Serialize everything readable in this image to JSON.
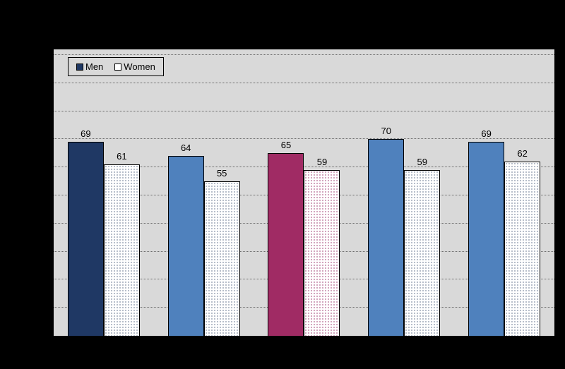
{
  "page": {
    "background_color": "#000000"
  },
  "plot": {
    "bg_color": "#D9D9D9",
    "gridline_color": "#6B6B6B"
  },
  "legend": {
    "items": [
      {
        "label": "Men",
        "swatch_color": "#1F3864",
        "swatch_border": "#000000"
      },
      {
        "label": "Women",
        "swatch_color": "#FFFFFF",
        "swatch_border": "#000000"
      }
    ]
  },
  "chart_data": {
    "type": "bar",
    "categories": [
      "",
      "",
      "",
      "",
      ""
    ],
    "series": [
      {
        "name": "Men",
        "values": [
          69,
          64,
          65,
          70,
          69
        ],
        "bar_colors": [
          "#1F3864",
          "#4F81BD",
          "#A02B64",
          "#4F81BD",
          "#4F81BD"
        ]
      },
      {
        "name": "Women",
        "values": [
          61,
          55,
          59,
          59,
          62
        ],
        "fill_color": "#FFFFFF",
        "dot_colors": [
          "#9FA8B8",
          "#9FA8B8",
          "#C489A9",
          "#9FA8B8",
          "#9FA8B8"
        ]
      }
    ],
    "ylim": [
      0,
      100
    ],
    "grid": true,
    "gridline_step": 10,
    "legend_position": "top-left"
  }
}
